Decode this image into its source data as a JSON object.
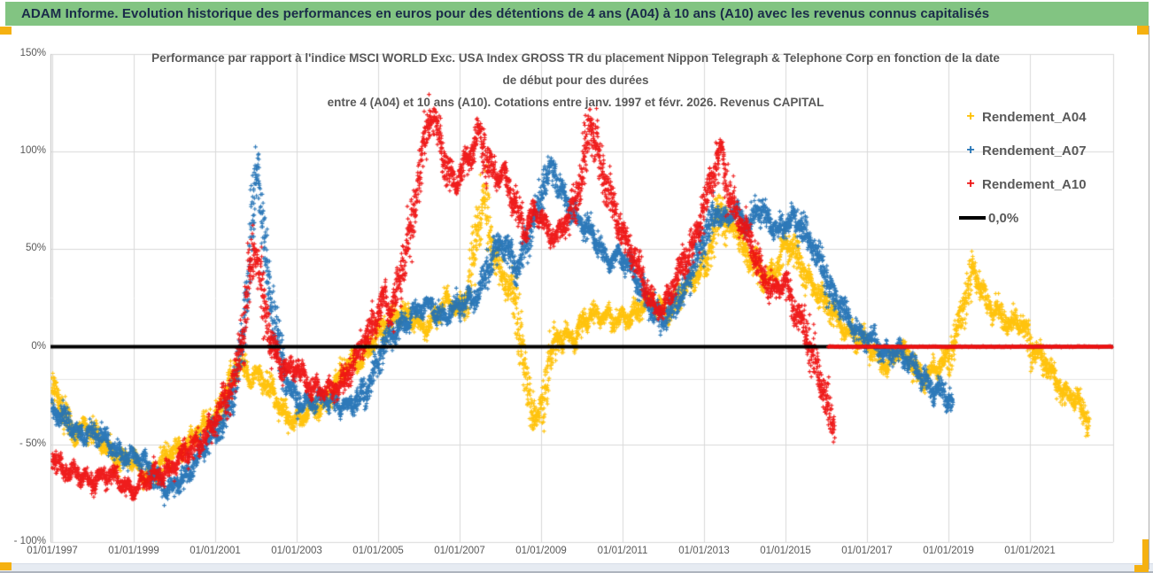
{
  "header": {
    "title": "ADAM Informe. Evolution historique des performances en euros pour des détentions de 4 ans (A04) à 10 ans (A10) avec les revenus connus capitalisés"
  },
  "chart": {
    "title_lines": [
      "Performance par rapport à l'indice MSCI WORLD Exc. USA Index GROSS TR  du placement Nippon Telegraph & Telephone Corp en fonction de la date",
      "de début pour des durées",
      "entre 4 (A04) et 10 ans (A10).  Cotations entre janv. 1997 et févr. 2026. Revenus CAPITAL"
    ]
  },
  "colors": {
    "header_green": "#82C482",
    "header_text": "#1A2B49",
    "accent_yellow": "#F5B111",
    "grid": "#D9D9D9",
    "grid_faint": "#E4E4E4",
    "axis_line": "#BFBFBF",
    "axis_text": "#595959",
    "series_a04": "#FFC000",
    "series_a07": "#2272B5",
    "series_a10": "#EE1111",
    "zero_line": "#000000"
  },
  "chart_data": {
    "type": "scatter",
    "marker": "plus",
    "x_axis": {
      "tick_years": [
        1997,
        1999,
        2001,
        2003,
        2005,
        2007,
        2009,
        2011,
        2013,
        2015,
        2017,
        2019,
        2021
      ],
      "tick_labels": [
        "01/01/1997",
        "01/01/1999",
        "01/01/2001",
        "01/01/2003",
        "01/01/2005",
        "01/01/2007",
        "01/01/2009",
        "01/01/2011",
        "01/01/2013",
        "01/01/2015",
        "01/01/2017",
        "01/01/2019",
        "01/01/2021"
      ],
      "min_year": 1997.0,
      "max_year": 2023.05
    },
    "y_axis": {
      "tick_values": [
        150,
        100,
        50,
        0,
        -50,
        -100
      ],
      "tick_labels": [
        "150%",
        "100%",
        "50%",
        "0%",
        "- 50%",
        "- 100%"
      ],
      "min": -100,
      "max": 150,
      "extra_faint_gridline_value": -16.5
    },
    "zero_line": {
      "label": "0,0%",
      "value": 0
    },
    "a10_pending_zero_segment": {
      "from_year": 2016.05,
      "to_year": 2023.04,
      "value": 0
    },
    "series": [
      {
        "name": "Rendement_A04",
        "color_key": "series_a04",
        "anchors": [
          [
            1997.0,
            -22
          ],
          [
            1997.2,
            -30
          ],
          [
            1997.5,
            -44
          ],
          [
            1997.8,
            -40
          ],
          [
            1998.1,
            -48
          ],
          [
            1998.4,
            -52
          ],
          [
            1998.7,
            -58
          ],
          [
            1999.0,
            -60
          ],
          [
            1999.3,
            -65
          ],
          [
            1999.6,
            -62
          ],
          [
            1999.9,
            -55
          ],
          [
            2000.2,
            -50
          ],
          [
            2000.5,
            -46
          ],
          [
            2000.8,
            -40
          ],
          [
            2001.1,
            -32
          ],
          [
            2001.4,
            -18
          ],
          [
            2001.6,
            -8
          ],
          [
            2001.8,
            -15
          ],
          [
            2002.0,
            -12
          ],
          [
            2002.2,
            -18
          ],
          [
            2002.5,
            -28
          ],
          [
            2002.8,
            -35
          ],
          [
            2003.1,
            -38
          ],
          [
            2003.4,
            -32
          ],
          [
            2003.7,
            -28
          ],
          [
            2004.0,
            -18
          ],
          [
            2004.3,
            -8
          ],
          [
            2004.6,
            -5
          ],
          [
            2004.9,
            2
          ],
          [
            2005.2,
            12
          ],
          [
            2005.5,
            18
          ],
          [
            2005.8,
            15
          ],
          [
            2006.1,
            10
          ],
          [
            2006.4,
            16
          ],
          [
            2006.7,
            22
          ],
          [
            2007.0,
            20
          ],
          [
            2007.2,
            28
          ],
          [
            2007.45,
            60
          ],
          [
            2007.6,
            78
          ],
          [
            2007.75,
            55
          ],
          [
            2007.9,
            45
          ],
          [
            2008.1,
            35
          ],
          [
            2008.3,
            28
          ],
          [
            2008.5,
            5
          ],
          [
            2008.7,
            -25
          ],
          [
            2008.9,
            -35
          ],
          [
            2009.05,
            -30
          ],
          [
            2009.2,
            -10
          ],
          [
            2009.4,
            3
          ],
          [
            2009.6,
            8
          ],
          [
            2009.8,
            5
          ],
          [
            2010.0,
            10
          ],
          [
            2010.3,
            16
          ],
          [
            2010.6,
            18
          ],
          [
            2010.9,
            12
          ],
          [
            2011.2,
            15
          ],
          [
            2011.5,
            25
          ],
          [
            2011.8,
            20
          ],
          [
            2012.1,
            18
          ],
          [
            2012.4,
            28
          ],
          [
            2012.7,
            32
          ],
          [
            2013.0,
            42
          ],
          [
            2013.2,
            55
          ],
          [
            2013.4,
            72
          ],
          [
            2013.6,
            58
          ],
          [
            2013.8,
            62
          ],
          [
            2014.0,
            50
          ],
          [
            2014.2,
            45
          ],
          [
            2014.5,
            32
          ],
          [
            2014.8,
            42
          ],
          [
            2015.0,
            55
          ],
          [
            2015.2,
            48
          ],
          [
            2015.5,
            36
          ],
          [
            2015.8,
            30
          ],
          [
            2016.0,
            22
          ],
          [
            2016.3,
            12
          ],
          [
            2016.6,
            8
          ],
          [
            2016.9,
            2
          ],
          [
            2017.2,
            -4
          ],
          [
            2017.5,
            -8
          ],
          [
            2017.8,
            -3
          ],
          [
            2018.1,
            -8
          ],
          [
            2018.4,
            -16
          ],
          [
            2018.7,
            -12
          ],
          [
            2019.0,
            -6
          ],
          [
            2019.2,
            8
          ],
          [
            2019.4,
            22
          ],
          [
            2019.6,
            38
          ],
          [
            2019.8,
            30
          ],
          [
            2020.0,
            22
          ],
          [
            2020.2,
            18
          ],
          [
            2020.5,
            8
          ],
          [
            2020.7,
            14
          ],
          [
            2020.9,
            10
          ],
          [
            2021.1,
            -2
          ],
          [
            2021.3,
            -8
          ],
          [
            2021.5,
            -13
          ],
          [
            2021.7,
            -18
          ],
          [
            2021.9,
            -24
          ],
          [
            2022.1,
            -28
          ],
          [
            2022.3,
            -34
          ],
          [
            2022.45,
            -38
          ]
        ]
      },
      {
        "name": "Rendement_A07",
        "color_key": "series_a07",
        "anchors": [
          [
            1997.0,
            -30
          ],
          [
            1997.3,
            -38
          ],
          [
            1997.6,
            -45
          ],
          [
            1997.9,
            -42
          ],
          [
            1998.2,
            -47
          ],
          [
            1998.5,
            -52
          ],
          [
            1998.8,
            -55
          ],
          [
            1999.1,
            -58
          ],
          [
            1999.4,
            -62
          ],
          [
            1999.7,
            -70
          ],
          [
            1999.95,
            -75
          ],
          [
            2000.2,
            -68
          ],
          [
            2000.5,
            -57
          ],
          [
            2000.8,
            -50
          ],
          [
            2001.1,
            -42
          ],
          [
            2001.35,
            -28
          ],
          [
            2001.6,
            -10
          ],
          [
            2001.8,
            30
          ],
          [
            2001.95,
            75
          ],
          [
            2002.05,
            95
          ],
          [
            2002.15,
            70
          ],
          [
            2002.3,
            35
          ],
          [
            2002.5,
            5
          ],
          [
            2002.7,
            -15
          ],
          [
            2002.9,
            -22
          ],
          [
            2003.1,
            -28
          ],
          [
            2003.4,
            -30
          ],
          [
            2003.7,
            -26
          ],
          [
            2004.0,
            -28
          ],
          [
            2004.3,
            -32
          ],
          [
            2004.6,
            -25
          ],
          [
            2004.9,
            -12
          ],
          [
            2005.1,
            -2
          ],
          [
            2005.4,
            8
          ],
          [
            2005.7,
            14
          ],
          [
            2006.0,
            18
          ],
          [
            2006.3,
            22
          ],
          [
            2006.6,
            15
          ],
          [
            2006.9,
            18
          ],
          [
            2007.2,
            24
          ],
          [
            2007.5,
            30
          ],
          [
            2007.8,
            45
          ],
          [
            2008.0,
            55
          ],
          [
            2008.2,
            50
          ],
          [
            2008.45,
            40
          ],
          [
            2008.7,
            55
          ],
          [
            2008.9,
            70
          ],
          [
            2009.1,
            85
          ],
          [
            2009.25,
            92
          ],
          [
            2009.45,
            80
          ],
          [
            2009.7,
            70
          ],
          [
            2010.0,
            65
          ],
          [
            2010.3,
            55
          ],
          [
            2010.6,
            45
          ],
          [
            2010.9,
            48
          ],
          [
            2011.1,
            42
          ],
          [
            2011.4,
            32
          ],
          [
            2011.7,
            22
          ],
          [
            2012.0,
            12
          ],
          [
            2012.3,
            22
          ],
          [
            2012.6,
            35
          ],
          [
            2012.9,
            48
          ],
          [
            2013.1,
            60
          ],
          [
            2013.3,
            72
          ],
          [
            2013.5,
            65
          ],
          [
            2013.7,
            68
          ],
          [
            2013.9,
            66
          ],
          [
            2014.1,
            62
          ],
          [
            2014.3,
            74
          ],
          [
            2014.5,
            66
          ],
          [
            2014.8,
            58
          ],
          [
            2015.0,
            64
          ],
          [
            2015.2,
            68
          ],
          [
            2015.45,
            58
          ],
          [
            2015.7,
            50
          ],
          [
            2015.95,
            40
          ],
          [
            2016.2,
            25
          ],
          [
            2016.5,
            15
          ],
          [
            2016.8,
            8
          ],
          [
            2017.1,
            3
          ],
          [
            2017.4,
            -4
          ],
          [
            2017.7,
            0
          ],
          [
            2018.0,
            -8
          ],
          [
            2018.3,
            -14
          ],
          [
            2018.6,
            -20
          ],
          [
            2018.85,
            -24
          ],
          [
            2019.1,
            -31
          ]
        ]
      },
      {
        "name": "Rendement_A10",
        "color_key": "series_a10",
        "anchors": [
          [
            1997.0,
            -56
          ],
          [
            1997.3,
            -62
          ],
          [
            1997.6,
            -66
          ],
          [
            1997.9,
            -69
          ],
          [
            1998.2,
            -65
          ],
          [
            1998.5,
            -68
          ],
          [
            1998.8,
            -71
          ],
          [
            1999.1,
            -72
          ],
          [
            1999.4,
            -68
          ],
          [
            1999.7,
            -64
          ],
          [
            2000.0,
            -60
          ],
          [
            2000.3,
            -55
          ],
          [
            2000.6,
            -48
          ],
          [
            2000.9,
            -42
          ],
          [
            2001.2,
            -30
          ],
          [
            2001.45,
            -15
          ],
          [
            2001.7,
            8
          ],
          [
            2001.85,
            38
          ],
          [
            2002.0,
            50
          ],
          [
            2002.2,
            20
          ],
          [
            2002.4,
            2
          ],
          [
            2002.6,
            -8
          ],
          [
            2002.8,
            -14
          ],
          [
            2003.0,
            -10
          ],
          [
            2003.3,
            -18
          ],
          [
            2003.6,
            -24
          ],
          [
            2003.9,
            -22
          ],
          [
            2004.2,
            -15
          ],
          [
            2004.5,
            -5
          ],
          [
            2004.8,
            8
          ],
          [
            2005.0,
            18
          ],
          [
            2005.15,
            26
          ],
          [
            2005.3,
            16
          ],
          [
            2005.5,
            30
          ],
          [
            2005.7,
            50
          ],
          [
            2005.9,
            75
          ],
          [
            2006.1,
            100
          ],
          [
            2006.3,
            118
          ],
          [
            2006.5,
            108
          ],
          [
            2006.7,
            92
          ],
          [
            2006.9,
            83
          ],
          [
            2007.1,
            90
          ],
          [
            2007.3,
            100
          ],
          [
            2007.5,
            112
          ],
          [
            2007.7,
            95
          ],
          [
            2007.9,
            85
          ],
          [
            2008.1,
            88
          ],
          [
            2008.35,
            75
          ],
          [
            2008.6,
            60
          ],
          [
            2008.85,
            68
          ],
          [
            2009.1,
            62
          ],
          [
            2009.35,
            58
          ],
          [
            2009.6,
            62
          ],
          [
            2009.85,
            75
          ],
          [
            2010.05,
            95
          ],
          [
            2010.2,
            118
          ],
          [
            2010.35,
            105
          ],
          [
            2010.5,
            90
          ],
          [
            2010.75,
            72
          ],
          [
            2011.0,
            60
          ],
          [
            2011.25,
            46
          ],
          [
            2011.5,
            32
          ],
          [
            2011.75,
            22
          ],
          [
            2012.0,
            20
          ],
          [
            2012.25,
            30
          ],
          [
            2012.5,
            44
          ],
          [
            2012.75,
            55
          ],
          [
            2013.0,
            70
          ],
          [
            2013.2,
            86
          ],
          [
            2013.4,
            102
          ],
          [
            2013.6,
            80
          ],
          [
            2013.85,
            65
          ],
          [
            2014.1,
            55
          ],
          [
            2014.4,
            40
          ],
          [
            2014.7,
            28
          ],
          [
            2015.0,
            32
          ],
          [
            2015.25,
            20
          ],
          [
            2015.5,
            8
          ],
          [
            2015.7,
            -8
          ],
          [
            2015.9,
            -20
          ],
          [
            2016.05,
            -32
          ],
          [
            2016.2,
            -42
          ]
        ]
      }
    ]
  }
}
